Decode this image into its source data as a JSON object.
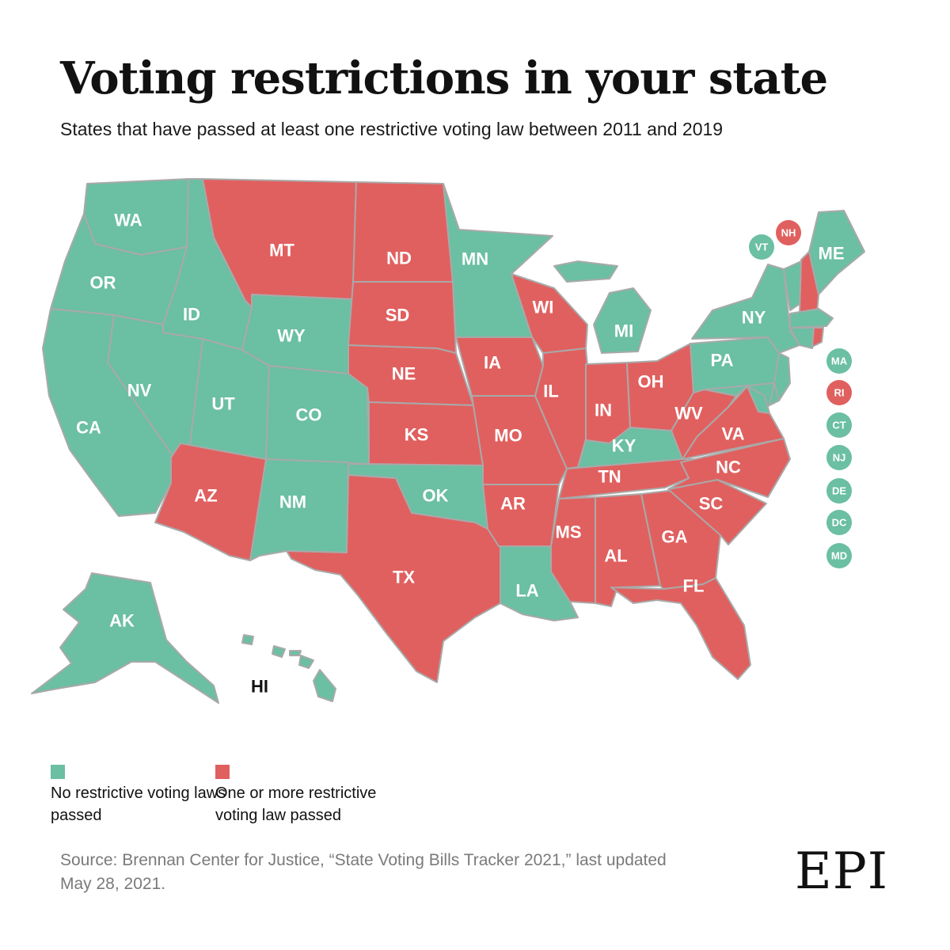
{
  "title": "Voting restrictions in your state",
  "subtitle": "States that have passed at least one restrictive voting law between 2011 and 2019",
  "colors": {
    "none": "#6bbfa3",
    "restrictive": "#e0605f",
    "border": "#a9a9a9"
  },
  "states": [
    {
      "abbr": "WA",
      "status": "none"
    },
    {
      "abbr": "OR",
      "status": "none"
    },
    {
      "abbr": "CA",
      "status": "none"
    },
    {
      "abbr": "ID",
      "status": "none"
    },
    {
      "abbr": "NV",
      "status": "none"
    },
    {
      "abbr": "UT",
      "status": "none"
    },
    {
      "abbr": "MT",
      "status": "restrictive"
    },
    {
      "abbr": "WY",
      "status": "none"
    },
    {
      "abbr": "CO",
      "status": "none"
    },
    {
      "abbr": "AZ",
      "status": "restrictive"
    },
    {
      "abbr": "NM",
      "status": "none"
    },
    {
      "abbr": "ND",
      "status": "restrictive"
    },
    {
      "abbr": "SD",
      "status": "restrictive"
    },
    {
      "abbr": "NE",
      "status": "restrictive"
    },
    {
      "abbr": "KS",
      "status": "restrictive"
    },
    {
      "abbr": "OK",
      "status": "none"
    },
    {
      "abbr": "TX",
      "status": "restrictive"
    },
    {
      "abbr": "MN",
      "status": "none"
    },
    {
      "abbr": "IA",
      "status": "restrictive"
    },
    {
      "abbr": "MO",
      "status": "restrictive"
    },
    {
      "abbr": "AR",
      "status": "restrictive"
    },
    {
      "abbr": "LA",
      "status": "none"
    },
    {
      "abbr": "WI",
      "status": "restrictive"
    },
    {
      "abbr": "IL",
      "status": "restrictive"
    },
    {
      "abbr": "MI",
      "status": "none"
    },
    {
      "abbr": "IN",
      "status": "restrictive"
    },
    {
      "abbr": "OH",
      "status": "restrictive"
    },
    {
      "abbr": "KY",
      "status": "none"
    },
    {
      "abbr": "TN",
      "status": "restrictive"
    },
    {
      "abbr": "MS",
      "status": "restrictive"
    },
    {
      "abbr": "AL",
      "status": "restrictive"
    },
    {
      "abbr": "GA",
      "status": "restrictive"
    },
    {
      "abbr": "FL",
      "status": "restrictive"
    },
    {
      "abbr": "SC",
      "status": "restrictive"
    },
    {
      "abbr": "NC",
      "status": "restrictive"
    },
    {
      "abbr": "VA",
      "status": "restrictive"
    },
    {
      "abbr": "WV",
      "status": "restrictive"
    },
    {
      "abbr": "PA",
      "status": "none"
    },
    {
      "abbr": "NY",
      "status": "none"
    },
    {
      "abbr": "ME",
      "status": "none"
    },
    {
      "abbr": "AK",
      "status": "none"
    },
    {
      "abbr": "HI",
      "status": "none"
    }
  ],
  "badges": [
    {
      "abbr": "VT",
      "status": "none"
    },
    {
      "abbr": "NH",
      "status": "restrictive"
    },
    {
      "abbr": "MA",
      "status": "none"
    },
    {
      "abbr": "RI",
      "status": "restrictive"
    },
    {
      "abbr": "CT",
      "status": "none"
    },
    {
      "abbr": "NJ",
      "status": "none"
    },
    {
      "abbr": "DE",
      "status": "none"
    },
    {
      "abbr": "DC",
      "status": "none"
    },
    {
      "abbr": "MD",
      "status": "none"
    }
  ],
  "legend": [
    {
      "label": "No restrictive voting laws passed",
      "status": "none"
    },
    {
      "label": "One or more restrictive voting law passed",
      "status": "restrictive"
    }
  ],
  "source": "Source: Brennan Center for Justice, “State Voting Bills Tracker 2021,” last updated May 28, 2021.",
  "logo": "EPI"
}
